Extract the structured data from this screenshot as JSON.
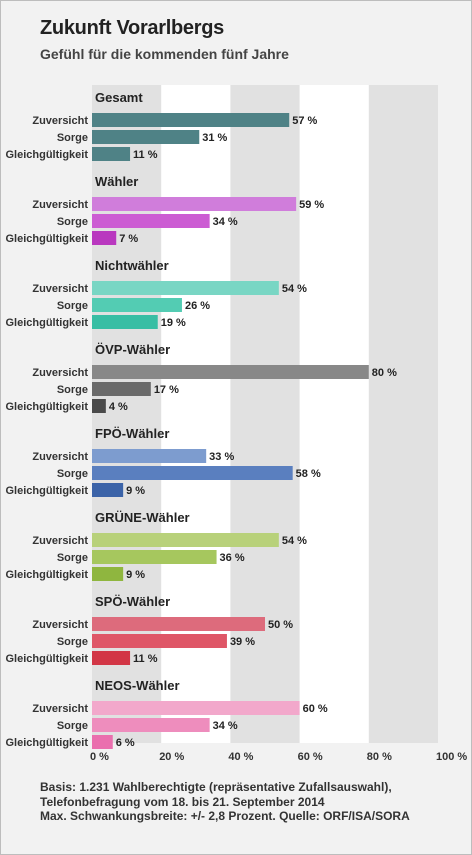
{
  "title": "Zukunft Vorarlbergs",
  "subtitle": "Gefühl für die kommenden fünf Jahre",
  "footnote": [
    "Basis: 1.231 Wahlberechtigte (repräsentative Zufallsauswahl),",
    "Telefonbefragung vom 18. bis 21. September 2014",
    "Max. Schwankungsbreite: +/- 2,8 Prozent. Quelle: ORF/ISA/SORA"
  ],
  "chart_data": {
    "type": "bar",
    "orientation": "horizontal",
    "categories": [
      "Zuversicht",
      "Sorge",
      "Gleichgültigkeit"
    ],
    "xlim": [
      0,
      100
    ],
    "xticks": [
      "0 %",
      "20 %",
      "40 %",
      "60 %",
      "80 %",
      "100 %"
    ],
    "value_suffix": " %",
    "grid": "alternating vertical bands",
    "groups": [
      {
        "name": "Gesamt",
        "values": [
          57,
          31,
          11
        ],
        "colors": [
          "#4f8286",
          "#4f8286",
          "#4f8286"
        ]
      },
      {
        "name": "Wähler",
        "values": [
          59,
          34,
          7
        ],
        "colors": [
          "#d07ddb",
          "#cc5cd3",
          "#b938bf"
        ]
      },
      {
        "name": "Nichtwähler",
        "values": [
          54,
          26,
          19
        ],
        "colors": [
          "#79d6c4",
          "#53ccb3",
          "#38bea4"
        ]
      },
      {
        "name": "ÖVP-Wähler",
        "values": [
          80,
          17,
          4
        ],
        "colors": [
          "#888888",
          "#6a6a6a",
          "#4a4a4a"
        ]
      },
      {
        "name": "FPÖ-Wähler",
        "values": [
          33,
          58,
          9
        ],
        "colors": [
          "#7d9ccf",
          "#5a7fbf",
          "#3b63a8"
        ]
      },
      {
        "name": "GRÜNE-Wähler",
        "values": [
          54,
          36,
          9
        ],
        "colors": [
          "#b8d17a",
          "#a6c75e",
          "#8fb63f"
        ]
      },
      {
        "name": "SPÖ-Wähler",
        "values": [
          50,
          39,
          11
        ],
        "colors": [
          "#dd6b7c",
          "#df5667",
          "#d23646"
        ]
      },
      {
        "name": "NEOS-Wähler",
        "values": [
          60,
          34,
          6
        ],
        "colors": [
          "#f2a8cb",
          "#ee8dbd",
          "#ea6fae"
        ]
      }
    ]
  }
}
